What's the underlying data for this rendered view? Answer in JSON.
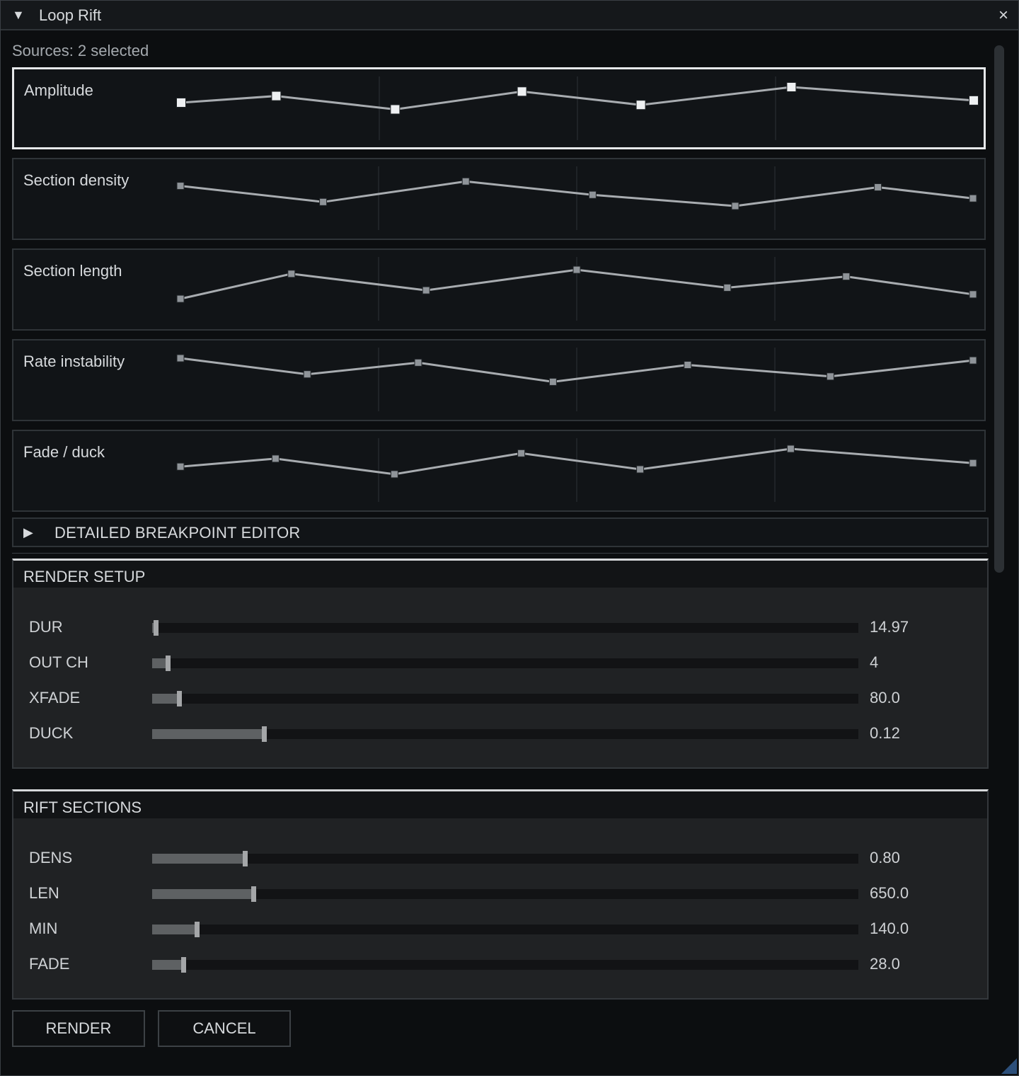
{
  "window": {
    "title": "Loop Rift",
    "close_glyph": "×",
    "collapse_glyph": "▼"
  },
  "sources_text": "Sources: 2 selected",
  "envelopes": [
    {
      "label": "Amplitude",
      "selected": true,
      "points": [
        [
          0,
          0.35
        ],
        [
          0.12,
          0.2
        ],
        [
          0.27,
          0.5
        ],
        [
          0.43,
          0.1
        ],
        [
          0.58,
          0.4
        ],
        [
          0.77,
          0.0
        ],
        [
          1,
          0.3
        ]
      ]
    },
    {
      "label": "Section density",
      "selected": false,
      "points": [
        [
          0,
          0.2
        ],
        [
          0.18,
          0.56
        ],
        [
          0.36,
          0.1
        ],
        [
          0.52,
          0.4
        ],
        [
          0.7,
          0.65
        ],
        [
          0.88,
          0.23
        ],
        [
          1,
          0.48
        ]
      ]
    },
    {
      "label": "Section length",
      "selected": false,
      "points": [
        [
          0,
          0.7
        ],
        [
          0.14,
          0.14
        ],
        [
          0.31,
          0.51
        ],
        [
          0.5,
          0.05
        ],
        [
          0.69,
          0.45
        ],
        [
          0.84,
          0.2
        ],
        [
          1,
          0.6
        ]
      ]
    },
    {
      "label": "Rate instability",
      "selected": false,
      "points": [
        [
          0,
          0.0
        ],
        [
          0.16,
          0.36
        ],
        [
          0.3,
          0.1
        ],
        [
          0.47,
          0.53
        ],
        [
          0.64,
          0.15
        ],
        [
          0.82,
          0.41
        ],
        [
          1,
          0.05
        ]
      ]
    },
    {
      "label": "Fade / duck",
      "selected": false,
      "points": [
        [
          0,
          0.4
        ],
        [
          0.12,
          0.22
        ],
        [
          0.27,
          0.57
        ],
        [
          0.43,
          0.1
        ],
        [
          0.58,
          0.46
        ],
        [
          0.77,
          0.0
        ],
        [
          1,
          0.32
        ]
      ]
    }
  ],
  "detail_editor": {
    "arrow_glyph": "▶",
    "label": "DETAILED BREAKPOINT EDITOR"
  },
  "render_setup": {
    "title": "RENDER SETUP",
    "params": [
      {
        "label": "DUR",
        "value": "14.97",
        "fraction": 0.005
      },
      {
        "label": "OUT CH",
        "value": "4",
        "fraction": 0.022
      },
      {
        "label": "XFADE",
        "value": "80.0",
        "fraction": 0.038
      },
      {
        "label": "DUCK",
        "value": "0.12",
        "fraction": 0.158
      }
    ]
  },
  "rift_sections": {
    "title": "RIFT SECTIONS",
    "params": [
      {
        "label": "DENS",
        "value": "0.80",
        "fraction": 0.131
      },
      {
        "label": "LEN",
        "value": "650.0",
        "fraction": 0.143
      },
      {
        "label": "MIN",
        "value": "140.0",
        "fraction": 0.063
      },
      {
        "label": "FADE",
        "value": "28.0",
        "fraction": 0.044
      }
    ]
  },
  "buttons": {
    "render": "RENDER",
    "cancel": "CANCEL"
  },
  "colors": {
    "accent": "#e6e8ea",
    "line": "#a8acb0",
    "selected_node": "#eef0f2",
    "node": "#8f9499",
    "grip": "#2c4f7a"
  }
}
